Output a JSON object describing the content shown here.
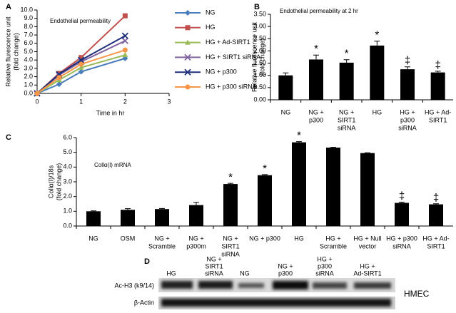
{
  "chart_data": [
    {
      "type": "line",
      "panel": "A",
      "annotation": "Endothelial permeability",
      "ylabel": [
        "Relative flurescence unit",
        "(fold change)"
      ],
      "xlabel": "Time in hr",
      "x": [
        0,
        0.5,
        1,
        2
      ],
      "xlim": [
        0,
        3
      ],
      "xticks": [
        0,
        1,
        2,
        3
      ],
      "ylim": [
        0,
        10
      ],
      "yticks": [
        {
          "value": 0,
          "label": "0.0"
        },
        {
          "value": 1,
          "label": "1.0"
        },
        {
          "value": 2,
          "label": "2.0"
        },
        {
          "value": 3,
          "label": "3.0"
        },
        {
          "value": 4,
          "label": "4.0"
        },
        {
          "value": 5,
          "label": "5.0"
        },
        {
          "value": 6,
          "label": "6.0"
        },
        {
          "value": 7,
          "label": "7.0"
        },
        {
          "value": 8,
          "label": "8.0"
        },
        {
          "value": 9,
          "label": "9.0"
        },
        {
          "value": 10,
          "label": "10.0"
        }
      ],
      "series": [
        {
          "name": "NG",
          "color": "#4a7ebb",
          "marker": "diamond",
          "values": [
            0,
            1.1,
            2.6,
            4.2
          ]
        },
        {
          "name": "HG",
          "color": "#c0504d",
          "marker": "square",
          "values": [
            0,
            2.4,
            4.3,
            9.3
          ]
        },
        {
          "name": "HG + Ad-SIRT1",
          "color": "#9bbb59",
          "marker": "triangle",
          "values": [
            0,
            1.6,
            3.1,
            4.6
          ]
        },
        {
          "name": "HG + SIRT1 siRNA",
          "color": "#8064a2",
          "marker": "x",
          "values": [
            0,
            2.2,
            3.8,
            6.3
          ]
        },
        {
          "name": "NG + p300",
          "color": "#1f2f7a",
          "marker": "x",
          "values": [
            0,
            2.3,
            4.0,
            6.9
          ]
        },
        {
          "name": "HG + p300 siRNA",
          "color": "#f79646",
          "marker": "circle",
          "values": [
            0,
            1.9,
            3.5,
            5.2
          ]
        }
      ]
    },
    {
      "type": "bar",
      "panel": "B",
      "annotation": "Endothelial permeability at 2 hr",
      "ylabel": [
        "Relative flurescence unit",
        "(fold change)"
      ],
      "categories": [
        [
          "NG"
        ],
        [
          "NG +",
          "p300"
        ],
        [
          "NG +",
          "SIRT1",
          "siRNA"
        ],
        [
          "HG"
        ],
        [
          "HG +",
          "p300",
          "siRNA"
        ],
        [
          "HG +  Ad-",
          "SIRT1"
        ]
      ],
      "values": [
        1.0,
        1.65,
        1.52,
        2.22,
        1.25,
        1.12
      ],
      "errors": [
        0.1,
        0.18,
        0.12,
        0.18,
        0.1,
        0.05
      ],
      "markers": [
        null,
        "*",
        "*",
        "*",
        "‡",
        "‡"
      ],
      "color": "#000000",
      "ylim": [
        0,
        3.5
      ],
      "yticks": [
        {
          "value": 0,
          "label": "0.00"
        },
        {
          "value": 0.5,
          "label": "0.50"
        },
        {
          "value": 1,
          "label": "1.00"
        },
        {
          "value": 1.5,
          "label": "1.50"
        },
        {
          "value": 2,
          "label": "2.00"
        },
        {
          "value": 2.5,
          "label": "2.50"
        },
        {
          "value": 3,
          "label": "3.00"
        },
        {
          "value": 3.5,
          "label": "3.50"
        }
      ]
    },
    {
      "type": "bar",
      "panel": "C",
      "annotation": "Collα(I) mRNA",
      "ylabel": [
        "Collα(I)/18s",
        "(fold change)"
      ],
      "categories": [
        [
          "NG"
        ],
        [
          "OSM"
        ],
        [
          "NG +",
          "Scramble"
        ],
        [
          "NG +",
          "p300m"
        ],
        [
          "NG +",
          "SIRT1",
          "siRNA"
        ],
        [
          "NG + p300"
        ],
        [
          "HG"
        ],
        [
          "HG +",
          "Scramble"
        ],
        [
          "HG + Null",
          "vector"
        ],
        [
          "HG + p300",
          "siRNA"
        ],
        [
          "HG + Ad-",
          "SIRT1"
        ]
      ],
      "values": [
        1.0,
        1.1,
        1.15,
        1.42,
        2.85,
        3.45,
        5.68,
        5.32,
        4.95,
        1.57,
        1.47
      ],
      "errors": [
        0.03,
        0.08,
        0.04,
        0.18,
        0.05,
        0.04,
        0.05,
        0.02,
        0.02,
        0.05,
        0.04
      ],
      "markers": [
        null,
        null,
        null,
        null,
        "*",
        "*",
        "*",
        null,
        null,
        "‡",
        "‡"
      ],
      "color": "#000000",
      "ylim": [
        0,
        6
      ],
      "yticks": [
        {
          "value": 0,
          "label": "0.0"
        },
        {
          "value": 1,
          "label": "1.0"
        },
        {
          "value": 2,
          "label": "2.0"
        },
        {
          "value": 3,
          "label": "3.0"
        },
        {
          "value": 4,
          "label": "4.0"
        },
        {
          "value": 5,
          "label": "5.0"
        },
        {
          "value": 6,
          "label": "6.0"
        }
      ]
    }
  ],
  "blot": {
    "panel": "D",
    "lanes": [
      [
        "HG"
      ],
      [
        "NG +",
        "SIRT1",
        "siRNA"
      ],
      [
        "NG"
      ],
      [
        "NG +",
        "p300"
      ],
      [
        "HG +",
        "p300",
        "siRNA"
      ],
      [
        "HG +",
        "Ad-SIRT1"
      ]
    ],
    "rows": [
      "Ac-H3 (k9/14)",
      "β-Actin"
    ],
    "cell_line": "HMEC"
  }
}
